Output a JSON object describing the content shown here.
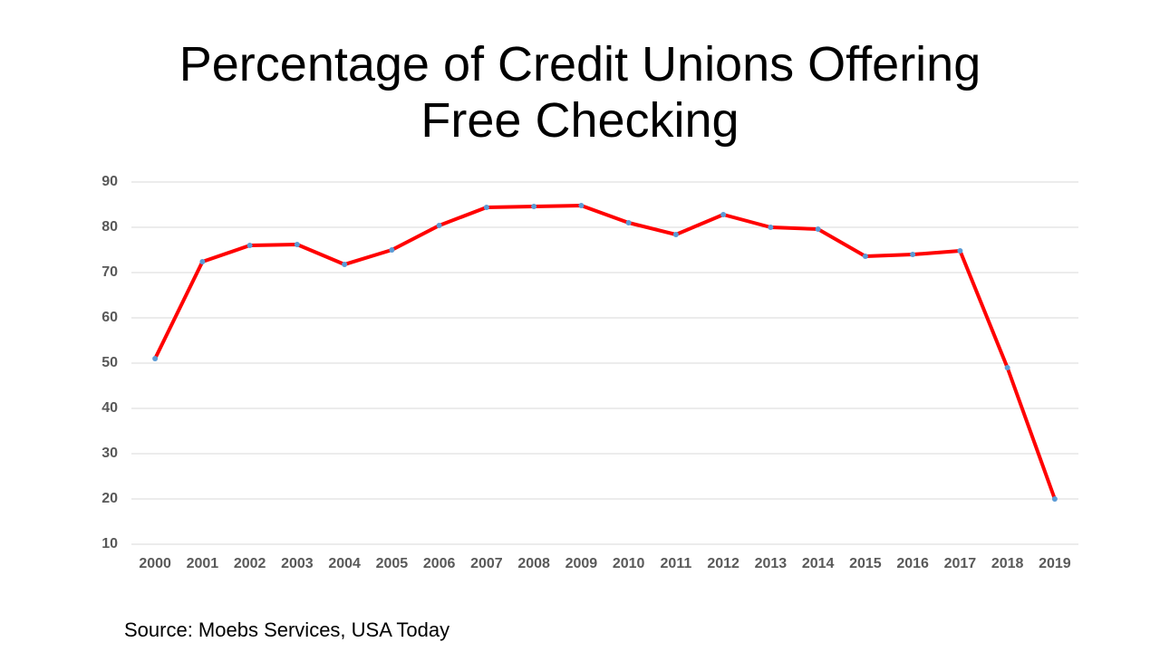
{
  "chart_data": {
    "type": "line",
    "title": "Percentage of Credit Unions Offering Free Checking",
    "source": "Source: Moebs Services, USA Today",
    "categories": [
      "2000",
      "2001",
      "2002",
      "2003",
      "2004",
      "2005",
      "2006",
      "2007",
      "2008",
      "2009",
      "2010",
      "2011",
      "2012",
      "2013",
      "2014",
      "2015",
      "2016",
      "2017",
      "2018",
      "2019"
    ],
    "values": [
      51,
      72.4,
      76,
      76.2,
      71.8,
      75,
      80.4,
      84.4,
      84.6,
      84.8,
      81,
      78.4,
      82.8,
      80,
      79.6,
      73.6,
      74,
      74.8,
      49,
      20
    ],
    "color": "#ff0000",
    "marker_color": "#5b9bd5",
    "ylim": [
      10,
      90
    ],
    "yticks": [
      10,
      20,
      30,
      40,
      50,
      60,
      70,
      80,
      90
    ],
    "grid": true
  }
}
